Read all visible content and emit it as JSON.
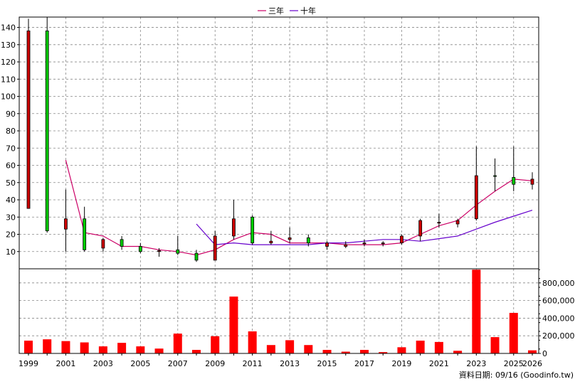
{
  "legend": [
    {
      "name": "三年",
      "color": "#cc0066"
    },
    {
      "name": "十年",
      "color": "#6600cc"
    }
  ],
  "source_note": "資料日期: 09/16  (Goodinfo.tw)",
  "chart_data": [
    {
      "type": "candlestick",
      "colors": {
        "up": "#00cc00",
        "down": "#cc0000",
        "grid": "#888888"
      },
      "ylim": [
        0,
        146
      ],
      "y_ticks": [
        10,
        20,
        30,
        40,
        50,
        60,
        70,
        80,
        90,
        100,
        110,
        120,
        130,
        140
      ],
      "grid": true,
      "candles": [
        {
          "x": 1999,
          "open": 138,
          "high": 145,
          "low": 35,
          "close": 35
        },
        {
          "x": 2000,
          "open": 22,
          "high": 146,
          "low": 21,
          "close": 138
        },
        {
          "x": 2001,
          "open": 29,
          "high": 46,
          "low": 10,
          "close": 23
        },
        {
          "x": 2002,
          "open": 11,
          "high": 36,
          "low": 10,
          "close": 29
        },
        {
          "x": 2003,
          "open": 17,
          "high": 18,
          "low": 10,
          "close": 12
        },
        {
          "x": 2004,
          "open": 13,
          "high": 19,
          "low": 11,
          "close": 17
        },
        {
          "x": 2005,
          "open": 10,
          "high": 15,
          "low": 9,
          "close": 13
        },
        {
          "x": 2006,
          "open": 10.5,
          "high": 12,
          "low": 7,
          "close": 10
        },
        {
          "x": 2007,
          "open": 9,
          "high": 19,
          "low": 8,
          "close": 11
        },
        {
          "x": 2008,
          "open": 5,
          "high": 11,
          "low": 4,
          "close": 9
        },
        {
          "x": 2009,
          "open": 19,
          "high": 22,
          "low": 5,
          "close": 5
        },
        {
          "x": 2010,
          "open": 29,
          "high": 40,
          "low": 17,
          "close": 19
        },
        {
          "x": 2011,
          "open": 15,
          "high": 31,
          "low": 14,
          "close": 30
        },
        {
          "x": 2012,
          "open": 16,
          "high": 22,
          "low": 14,
          "close": 15
        },
        {
          "x": 2013,
          "open": 18,
          "high": 24,
          "low": 15,
          "close": 17
        },
        {
          "x": 2014,
          "open": 15,
          "high": 20,
          "low": 13,
          "close": 18
        },
        {
          "x": 2015,
          "open": 15,
          "high": 16,
          "low": 11,
          "close": 13
        },
        {
          "x": 2016,
          "open": 14,
          "high": 16,
          "low": 12,
          "close": 13
        },
        {
          "x": 2017,
          "open": 15,
          "high": 17,
          "low": 13,
          "close": 14.5
        },
        {
          "x": 2018,
          "open": 15,
          "high": 16,
          "low": 13,
          "close": 14.5
        },
        {
          "x": 2019,
          "open": 19,
          "high": 20,
          "low": 14,
          "close": 15
        },
        {
          "x": 2020,
          "open": 28,
          "high": 29,
          "low": 16,
          "close": 19
        },
        {
          "x": 2021,
          "open": 27,
          "high": 32,
          "low": 24,
          "close": 26.5
        },
        {
          "x": 2022,
          "open": 28,
          "high": 29,
          "low": 24,
          "close": 26
        },
        {
          "x": 2023,
          "open": 54,
          "high": 71,
          "low": 28,
          "close": 29
        },
        {
          "x": 2024,
          "open": 54,
          "high": 64,
          "low": 45,
          "close": 54
        },
        {
          "x": 2025,
          "open": 49,
          "high": 71,
          "low": 45,
          "close": 53
        },
        {
          "x": 2026,
          "open": 52,
          "high": 56,
          "low": 46,
          "close": 49
        }
      ],
      "series": [
        {
          "name": "三年",
          "color": "#cc0066",
          "x": [
            2001,
            2002,
            2003,
            2004,
            2005,
            2006,
            2007,
            2008,
            2009,
            2010,
            2011,
            2012,
            2013,
            2014,
            2015,
            2016,
            2017,
            2018,
            2019,
            2020,
            2021,
            2022,
            2023,
            2024,
            2025,
            2026
          ],
          "values": [
            63,
            21,
            19,
            13,
            13,
            11,
            10,
            8,
            11,
            17,
            21,
            20,
            15,
            15,
            15,
            14,
            14,
            14,
            15,
            20,
            25,
            28,
            37,
            45,
            52,
            51
          ]
        },
        {
          "name": "十年",
          "color": "#6600cc",
          "x": [
            2008,
            2009,
            2010,
            2011,
            2012,
            2013,
            2014,
            2015,
            2016,
            2017,
            2018,
            2019,
            2020,
            2021,
            2022,
            2023,
            2024,
            2025,
            2026
          ],
          "values": [
            26,
            14,
            15,
            14,
            14,
            14,
            14,
            15,
            15,
            16,
            17,
            17,
            16,
            17.5,
            19,
            23,
            27,
            30.5,
            34
          ]
        }
      ]
    },
    {
      "type": "bar",
      "color": "#ff0000",
      "ylim": [
        0,
        960000
      ],
      "y_ticks": [
        0,
        200000,
        400000,
        600000,
        800000
      ],
      "y_tick_labels": [
        "0",
        "200,000",
        "400,000",
        "600,000",
        "800,000"
      ],
      "x_ticks": [
        1999,
        2001,
        2003,
        2005,
        2007,
        2009,
        2011,
        2013,
        2015,
        2017,
        2019,
        2021,
        2023,
        2025,
        2026
      ],
      "categories": [
        1999,
        2000,
        2001,
        2002,
        2003,
        2004,
        2005,
        2006,
        2007,
        2008,
        2009,
        2010,
        2011,
        2012,
        2013,
        2014,
        2015,
        2016,
        2017,
        2018,
        2019,
        2020,
        2021,
        2022,
        2023,
        2024,
        2025,
        2026
      ],
      "values": [
        145000,
        160000,
        140000,
        125000,
        80000,
        120000,
        80000,
        55000,
        225000,
        40000,
        195000,
        645000,
        250000,
        95000,
        150000,
        95000,
        40000,
        20000,
        40000,
        15000,
        70000,
        145000,
        130000,
        30000,
        950000,
        185000,
        460000,
        35000
      ]
    }
  ]
}
